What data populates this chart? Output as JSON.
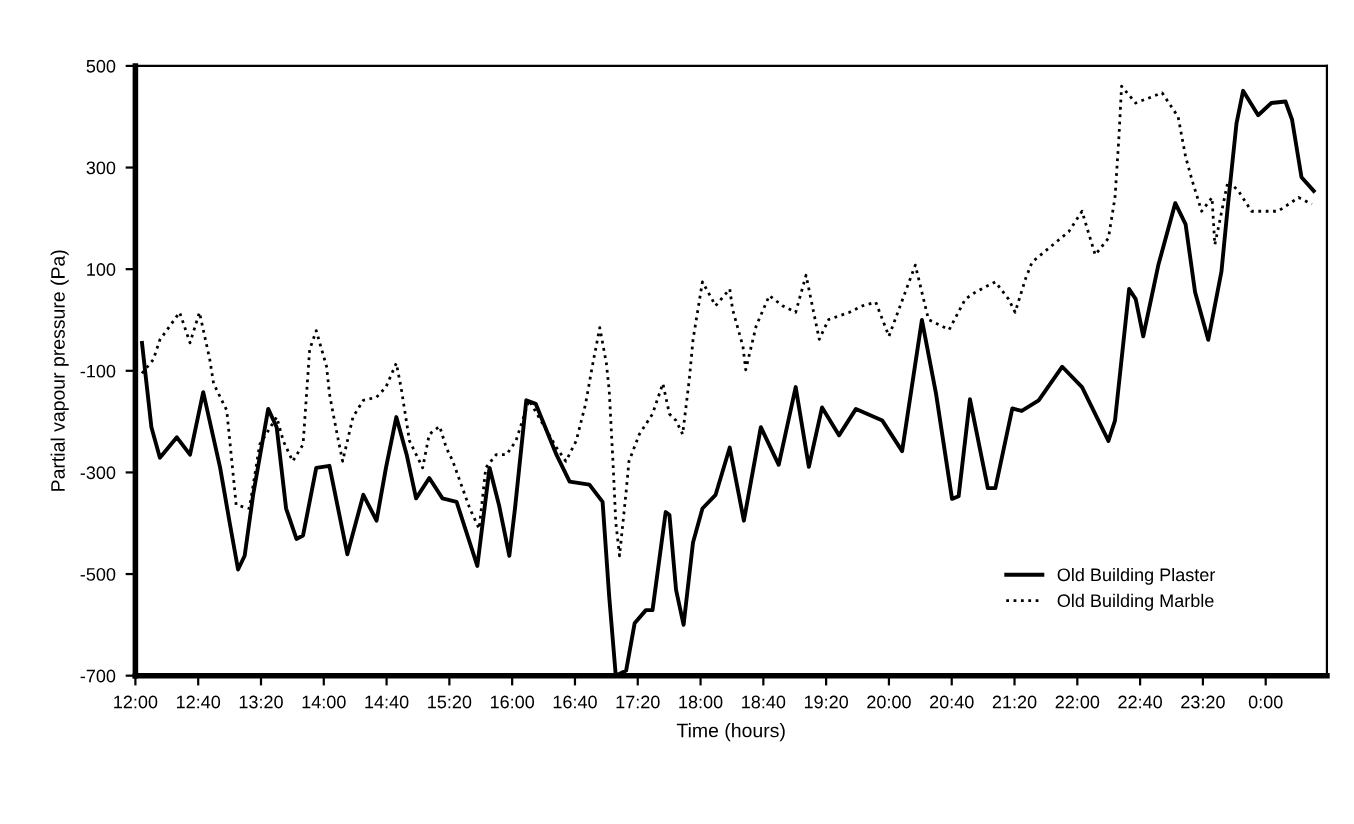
{
  "chart_data": {
    "type": "line",
    "xlabel": "Time (hours)",
    "ylabel": "Partial vapour pressure (Pa)",
    "xlim": [
      12,
      24.65
    ],
    "ylim": [
      -700,
      500
    ],
    "yticks": [
      -700,
      -500,
      -300,
      -100,
      100,
      300,
      500
    ],
    "xticks": [
      {
        "value": 12,
        "label": "12:00"
      },
      {
        "value": 12.6667,
        "label": "12:40"
      },
      {
        "value": 13.3333,
        "label": "13:20"
      },
      {
        "value": 14,
        "label": "14:00"
      },
      {
        "value": 14.6667,
        "label": "14:40"
      },
      {
        "value": 15.3333,
        "label": "15:20"
      },
      {
        "value": 16,
        "label": "16:00"
      },
      {
        "value": 16.6667,
        "label": "16:40"
      },
      {
        "value": 17.3333,
        "label": "17:20"
      },
      {
        "value": 18,
        "label": "18:00"
      },
      {
        "value": 18.6667,
        "label": "18:40"
      },
      {
        "value": 19.3333,
        "label": "19:20"
      },
      {
        "value": 20,
        "label": "20:00"
      },
      {
        "value": 20.6667,
        "label": "20:40"
      },
      {
        "value": 21.3333,
        "label": "21:20"
      },
      {
        "value": 22,
        "label": "22:00"
      },
      {
        "value": 22.6667,
        "label": "22:40"
      },
      {
        "value": 23.3333,
        "label": "23:20"
      },
      {
        "value": 24,
        "label": "0:00"
      }
    ],
    "grid": false,
    "legend": "bottom right",
    "marker": "none",
    "series": [
      {
        "name": "Old Building Plaster",
        "color": "#000000",
        "line_style": "solid",
        "x": [
          12.07,
          12.17,
          12.26,
          12.44,
          12.58,
          12.72,
          12.9,
          13.0,
          13.09,
          13.16,
          13.25,
          13.41,
          13.5,
          13.6,
          13.71,
          13.78,
          13.92,
          14.06,
          14.25,
          14.42,
          14.56,
          14.66,
          14.77,
          14.88,
          14.98,
          15.12,
          15.26,
          15.41,
          15.55,
          15.63,
          15.76,
          15.86,
          15.97,
          16.03,
          16.15,
          16.25,
          16.47,
          16.61,
          16.82,
          16.96,
          17.03,
          17.1,
          17.21,
          17.3,
          17.42,
          17.49,
          17.63,
          17.67,
          17.74,
          17.82,
          17.92,
          18.02,
          18.16,
          18.31,
          18.46,
          18.64,
          18.83,
          19.01,
          19.15,
          19.29,
          19.47,
          19.65,
          19.93,
          20.14,
          20.35,
          20.5,
          20.67,
          20.74,
          20.86,
          21.05,
          21.13,
          21.31,
          21.41,
          21.59,
          21.84,
          22.05,
          22.33,
          22.4,
          22.55,
          22.62,
          22.7,
          22.86,
          23.04,
          23.15,
          23.25,
          23.39,
          23.53,
          23.6,
          23.69,
          23.76,
          23.92,
          24.06,
          24.21,
          24.28,
          24.38,
          24.51
        ],
        "values": [
          -45,
          -211,
          -271,
          -231,
          -265,
          -142,
          -291,
          -398,
          -491,
          -464,
          -344,
          -175,
          -211,
          -371,
          -431,
          -424,
          -291,
          -287,
          -461,
          -344,
          -395,
          -291,
          -191,
          -265,
          -351,
          -311,
          -351,
          -358,
          -438,
          -484,
          -291,
          -364,
          -464,
          -371,
          -158,
          -165,
          -265,
          -318,
          -324,
          -358,
          -544,
          -700,
          -690,
          -597,
          -571,
          -571,
          -378,
          -384,
          -531,
          -600,
          -438,
          -371,
          -344,
          -251,
          -395,
          -211,
          -285,
          -132,
          -289,
          -172,
          -227,
          -175,
          -198,
          -258,
          0,
          -145,
          -352,
          -347,
          -156,
          -331,
          -331,
          -174,
          -179,
          -158,
          -92,
          -132,
          -238,
          -198,
          61,
          41,
          -32,
          108,
          230,
          188,
          55,
          -39,
          95,
          228,
          387,
          451,
          403,
          427,
          430,
          394,
          281,
          254
        ]
      },
      {
        "name": "Old Building Marble",
        "color": "#000000",
        "line_style": "dotted",
        "x": [
          12.07,
          12.19,
          12.26,
          12.47,
          12.58,
          12.68,
          12.79,
          12.83,
          12.97,
          13.07,
          13.21,
          13.32,
          13.5,
          13.57,
          13.67,
          13.78,
          13.85,
          13.92,
          14.03,
          14.06,
          14.1,
          14.17,
          14.2,
          14.31,
          14.42,
          14.56,
          14.66,
          14.77,
          14.82,
          14.91,
          15.05,
          15.12,
          15.23,
          15.3,
          15.37,
          15.55,
          15.65,
          15.72,
          15.83,
          15.94,
          16.04,
          16.18,
          16.47,
          16.57,
          16.68,
          16.78,
          16.85,
          16.93,
          17.0,
          17.03,
          17.07,
          17.1,
          17.14,
          17.21,
          17.24,
          17.35,
          17.49,
          17.6,
          17.67,
          17.74,
          17.81,
          17.88,
          17.92,
          18.02,
          18.16,
          18.31,
          18.34,
          18.45,
          18.48,
          18.59,
          18.73,
          18.87,
          19.01,
          19.12,
          19.26,
          19.36,
          19.58,
          19.72,
          19.86,
          20.0,
          20.28,
          20.42,
          20.64,
          20.81,
          20.92,
          21.13,
          21.27,
          21.34,
          21.45,
          21.52,
          21.91,
          22.05,
          22.19,
          22.33,
          22.4,
          22.44,
          22.47,
          22.62,
          22.9,
          23.07,
          23.15,
          23.22,
          23.32,
          23.43,
          23.46,
          23.6,
          23.71,
          23.85,
          24.13,
          24.35,
          24.49
        ],
        "values": [
          -105,
          -78,
          -39,
          15,
          -45,
          15,
          -78,
          -125,
          -178,
          -364,
          -371,
          -245,
          -191,
          -238,
          -278,
          -245,
          -58,
          -21,
          -92,
          -145,
          -185,
          -251,
          -278,
          -191,
          -158,
          -152,
          -132,
          -85,
          -132,
          -238,
          -291,
          -225,
          -209,
          -251,
          -278,
          -371,
          -411,
          -291,
          -265,
          -265,
          -238,
          -158,
          -251,
          -278,
          -238,
          -165,
          -92,
          -15,
          -85,
          -138,
          -278,
          -398,
          -464,
          -338,
          -278,
          -225,
          -185,
          -125,
          -185,
          -198,
          -225,
          -118,
          -39,
          75,
          28,
          61,
          21,
          -52,
          -98,
          -12,
          48,
          28,
          15,
          88,
          -38,
          1,
          15,
          28,
          35,
          -32,
          108,
          1,
          -19,
          41,
          55,
          75,
          41,
          15,
          81,
          114,
          174,
          214,
          128,
          161,
          241,
          354,
          460,
          427,
          447,
          400,
          321,
          274,
          214,
          241,
          148,
          274,
          254,
          214,
          214,
          241,
          228
        ]
      }
    ]
  }
}
